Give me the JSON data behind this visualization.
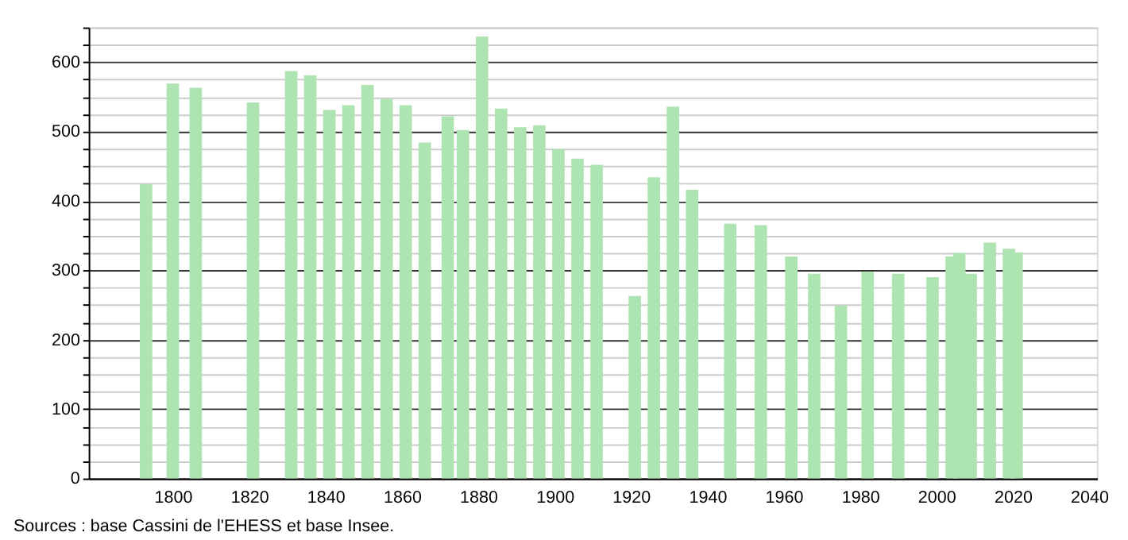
{
  "chart_data": {
    "type": "bar",
    "color": "#aee4b2",
    "x": [
      1793,
      1800,
      1806,
      1821,
      1831,
      1836,
      1841,
      1846,
      1851,
      1856,
      1861,
      1866,
      1872,
      1876,
      1881,
      1886,
      1891,
      1896,
      1901,
      1906,
      1911,
      1921,
      1926,
      1931,
      1936,
      1946,
      1954,
      1962,
      1968,
      1975,
      1982,
      1990,
      1999,
      2004,
      2006,
      2009,
      2014,
      2019,
      2021
    ],
    "values": [
      424,
      569,
      563,
      542,
      587,
      581,
      531,
      538,
      567,
      547,
      538,
      484,
      522,
      502,
      637,
      533,
      506,
      509,
      475,
      461,
      452,
      263,
      434,
      536,
      416,
      367,
      365,
      320,
      295,
      249,
      298,
      295,
      290,
      320,
      325,
      295,
      340,
      331,
      326
    ],
    "xlim": [
      1780,
      2040
    ],
    "xticks": [
      1800,
      1820,
      1840,
      1860,
      1880,
      1900,
      1920,
      1940,
      1960,
      1980,
      2000,
      2020,
      2040
    ],
    "ylim": [
      0,
      650
    ],
    "yticks": [
      0,
      {
        "value": 25,
        "label": null
      },
      {
        "value": 50,
        "label": null
      },
      {
        "value": 75,
        "label": null
      },
      100,
      {
        "value": 125,
        "label": null
      },
      {
        "value": 150,
        "label": null
      },
      {
        "value": 175,
        "label": null
      },
      200,
      {
        "value": 225,
        "label": null
      },
      {
        "value": 250,
        "label": null
      },
      {
        "value": 275,
        "label": null
      },
      300,
      {
        "value": 325,
        "label": null
      },
      {
        "value": 350,
        "label": null
      },
      {
        "value": 375,
        "label": null
      },
      400,
      {
        "value": 425,
        "label": null
      },
      {
        "value": 450,
        "label": null
      },
      {
        "value": 475,
        "label": null
      },
      500,
      {
        "value": 525,
        "label": null
      },
      {
        "value": 550,
        "label": null
      },
      {
        "value": 575,
        "label": null
      },
      600,
      {
        "value": 625,
        "label": null
      },
      {
        "value": 650,
        "label": null
      }
    ],
    "grid": "y",
    "annotations": [
      "Sources : base Cassini de l'EHESS et base Insee."
    ]
  }
}
